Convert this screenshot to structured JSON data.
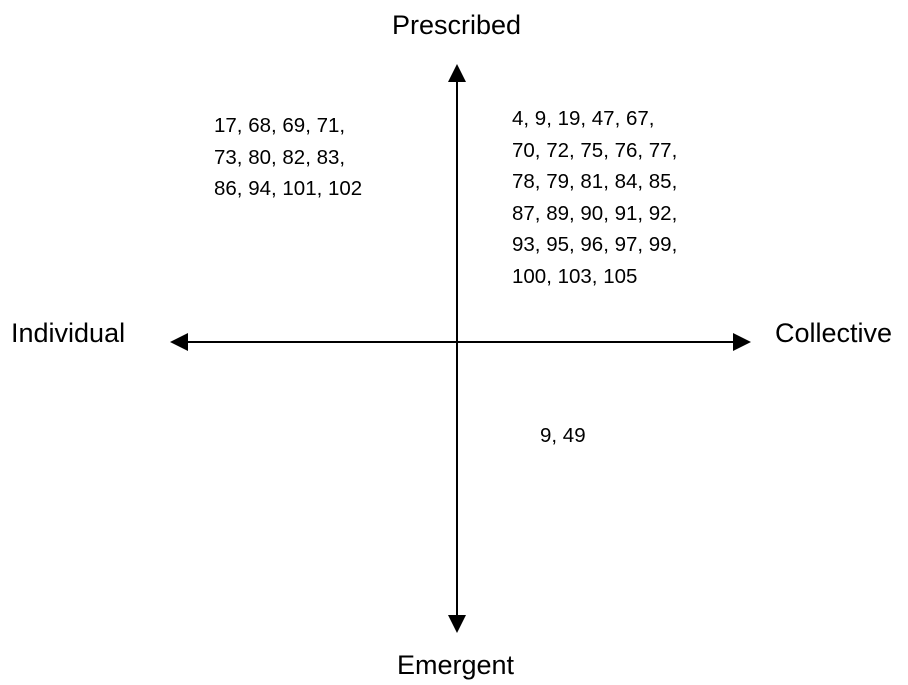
{
  "axes": {
    "top": "Prescribed",
    "bottom": "Emergent",
    "left": "Individual",
    "right": "Collective"
  },
  "quadrants": {
    "prescribed_individual": [
      "17, 68, 69, 71,",
      "73, 80, 82, 83,",
      "86, 94, 101, 102"
    ],
    "prescribed_collective": [
      "4, 9, 19, 47, 67,",
      "70, 72, 75, 76, 77,",
      "78, 79, 81, 84, 85,",
      "87, 89, 90, 91, 92,",
      "93, 95, 96, 97, 99,",
      "100, 103, 105"
    ],
    "emergent_collective": [
      "9, 49"
    ]
  }
}
